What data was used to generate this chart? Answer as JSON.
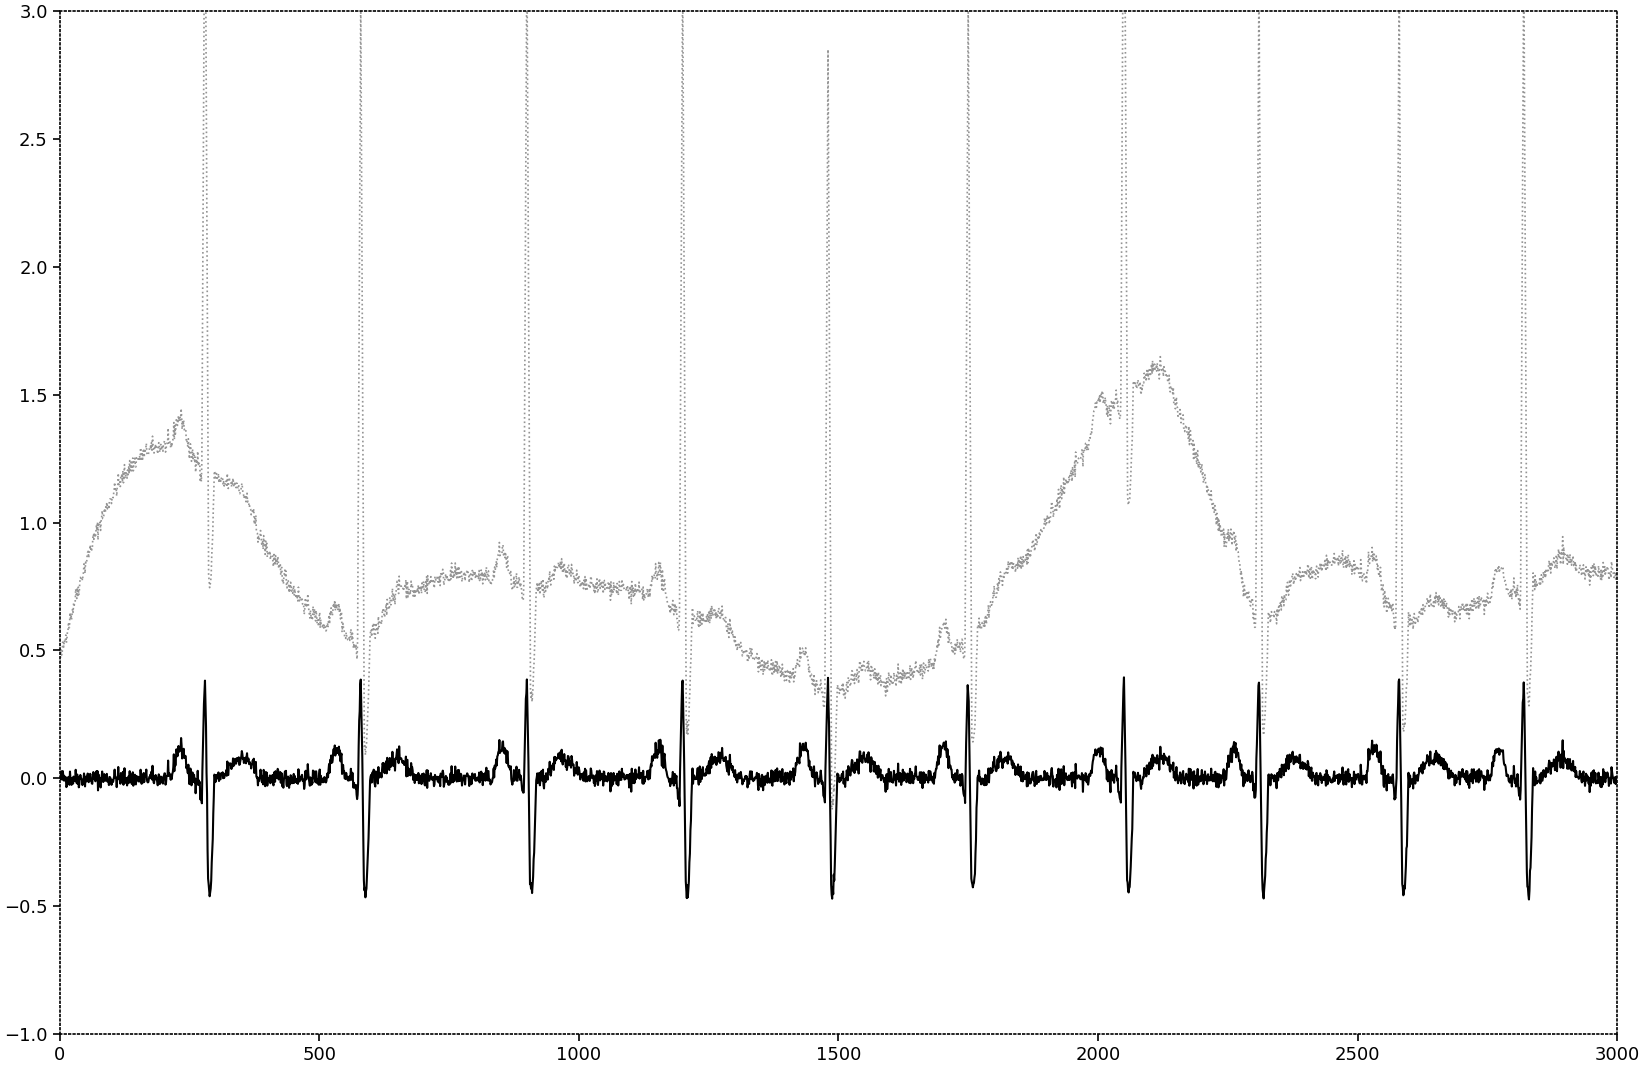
{
  "xlim": [
    0,
    3000
  ],
  "ylim": [
    -1,
    3
  ],
  "yticks": [
    -1,
    -0.5,
    0,
    0.5,
    1,
    1.5,
    2,
    2.5,
    3
  ],
  "xticks": [
    0,
    500,
    1000,
    1500,
    2000,
    2500,
    3000
  ],
  "bg_color": "#ffffff",
  "line1_color": "#888888",
  "line2_color": "#000000",
  "figsize": [
    16.44,
    10.68
  ],
  "dpi": 100,
  "beat_positions": [
    280,
    580,
    900,
    1200,
    1480,
    1750,
    2050,
    2310,
    2580,
    2820
  ],
  "baseline_ctrl_x": [
    0,
    100,
    200,
    350,
    580,
    700,
    900,
    1050,
    1200,
    1480,
    1600,
    1750,
    1900,
    2050,
    2150,
    2310,
    2450,
    2580,
    2700,
    2820,
    3000
  ],
  "baseline_ctrl_y": [
    0.45,
    1.1,
    1.3,
    1.05,
    0.55,
    0.75,
    0.75,
    0.75,
    0.65,
    0.35,
    0.38,
    0.55,
    1.0,
    1.5,
    1.45,
    0.65,
    0.85,
    0.65,
    0.65,
    0.75,
    0.8
  ]
}
